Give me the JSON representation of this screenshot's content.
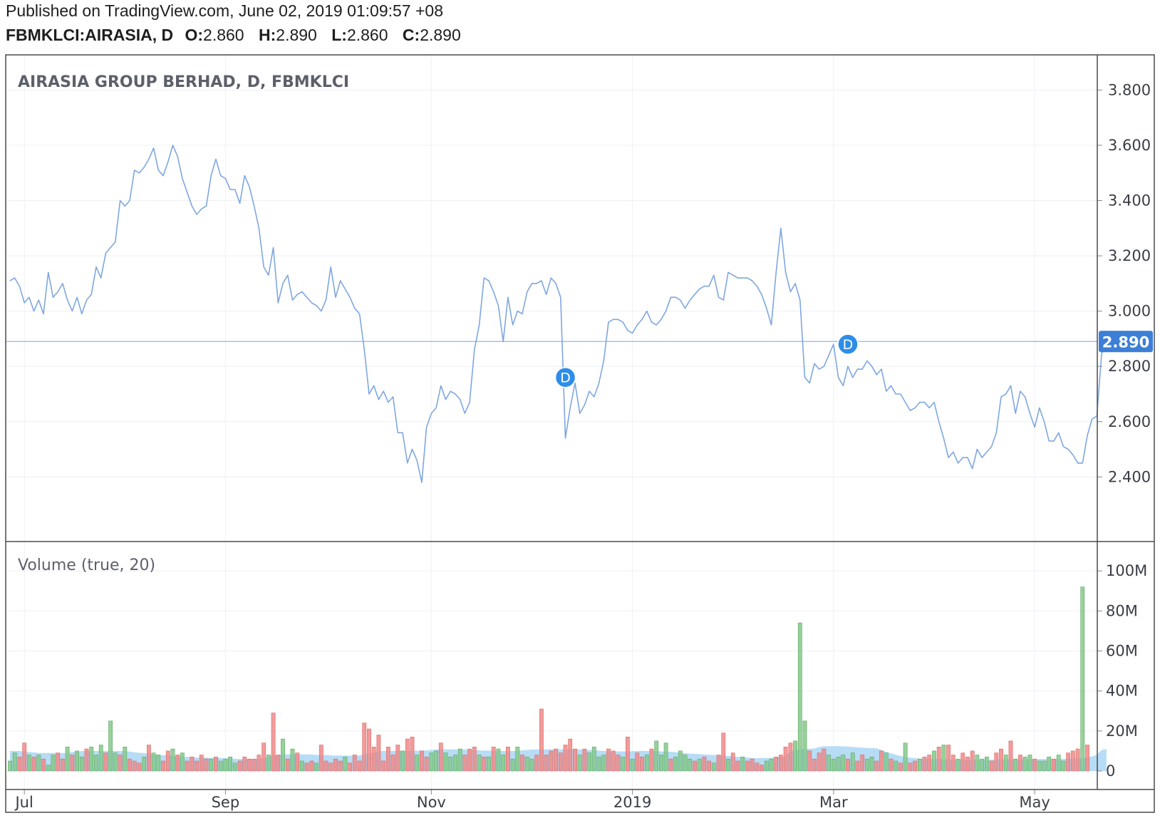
{
  "header": {
    "published": "Published on TradingView.com, June 02, 2019 01:09:57 +08",
    "symbol": "FBMKLCI:AIRASIA, D",
    "ohlc": [
      {
        "k": "O:",
        "v": "2.860"
      },
      {
        "k": "H:",
        "v": "2.890"
      },
      {
        "k": "L:",
        "v": "2.860"
      },
      {
        "k": "C:",
        "v": "2.890"
      }
    ]
  },
  "colors": {
    "line": "#7fa7e0",
    "last_price_bg": "#3d7fd6",
    "marker": "#2e8de8",
    "vol_up": "#85c98a",
    "vol_down": "#f08a88",
    "vol_ma": "#9fd0f3",
    "grid": "#eef0f3",
    "frame": "#4a4a4a"
  },
  "chart_data": [
    {
      "type": "line",
      "title": "AIRASIA GROUP BERHAD, D, FBMKLCI",
      "x_labels": [
        "Jul",
        "Sep",
        "Nov",
        "2019",
        "Mar",
        "May"
      ],
      "x_label_index": [
        3,
        45,
        88,
        130,
        172,
        214
      ],
      "ylim": [
        2.29,
        3.855
      ],
      "y_ticks": [
        "3.800",
        "3.600",
        "3.400",
        "3.200",
        "3.000",
        "2.800",
        "2.600",
        "2.400"
      ],
      "y_tick_values": [
        3.8,
        3.6,
        3.4,
        3.2,
        3.0,
        2.8,
        2.6,
        2.4
      ],
      "last_price": 2.89,
      "last_price_label": "2.890",
      "dividend_markers": [
        {
          "index": 116,
          "value": 2.76,
          "label": "D"
        },
        {
          "index": 175,
          "value": 2.88,
          "label": "D"
        }
      ],
      "values": [
        3.11,
        3.12,
        3.09,
        3.03,
        3.05,
        3.0,
        3.04,
        2.99,
        3.14,
        3.05,
        3.07,
        3.1,
        3.04,
        3.0,
        3.05,
        2.99,
        3.04,
        3.06,
        3.16,
        3.12,
        3.21,
        3.23,
        3.25,
        3.4,
        3.38,
        3.4,
        3.51,
        3.5,
        3.52,
        3.55,
        3.59,
        3.51,
        3.49,
        3.54,
        3.6,
        3.56,
        3.48,
        3.43,
        3.38,
        3.35,
        3.37,
        3.38,
        3.49,
        3.55,
        3.49,
        3.48,
        3.44,
        3.44,
        3.39,
        3.49,
        3.45,
        3.38,
        3.3,
        3.16,
        3.13,
        3.23,
        3.03,
        3.1,
        3.13,
        3.04,
        3.06,
        3.07,
        3.05,
        3.03,
        3.02,
        3.0,
        3.04,
        3.16,
        3.05,
        3.11,
        3.08,
        3.05,
        3.01,
        2.99,
        2.86,
        2.7,
        2.73,
        2.68,
        2.71,
        2.67,
        2.69,
        2.56,
        2.56,
        2.45,
        2.5,
        2.46,
        2.38,
        2.58,
        2.63,
        2.65,
        2.73,
        2.68,
        2.71,
        2.7,
        2.68,
        2.63,
        2.67,
        2.86,
        2.95,
        3.12,
        3.11,
        3.07,
        3.02,
        2.89,
        3.05,
        2.95,
        3.0,
        2.99,
        3.07,
        3.1,
        3.1,
        3.11,
        3.06,
        3.12,
        3.1,
        3.05,
        2.54,
        2.65,
        2.74,
        2.63,
        2.66,
        2.71,
        2.69,
        2.74,
        2.82,
        2.96,
        2.97,
        2.97,
        2.96,
        2.93,
        2.92,
        2.95,
        2.97,
        3.0,
        2.96,
        2.95,
        2.97,
        3.0,
        3.05,
        3.05,
        3.04,
        3.01,
        3.04,
        3.06,
        3.08,
        3.09,
        3.09,
        3.13,
        3.05,
        3.04,
        3.14,
        3.13,
        3.12,
        3.12,
        3.12,
        3.11,
        3.09,
        3.06,
        3.01,
        2.95,
        3.14,
        3.3,
        3.14,
        3.07,
        3.1,
        3.04,
        2.76,
        2.74,
        2.81,
        2.79,
        2.8,
        2.84,
        2.88,
        2.76,
        2.73,
        2.8,
        2.76,
        2.79,
        2.79,
        2.82,
        2.8,
        2.77,
        2.79,
        2.71,
        2.73,
        2.7,
        2.7,
        2.67,
        2.64,
        2.65,
        2.67,
        2.67,
        2.65,
        2.67,
        2.6,
        2.54,
        2.47,
        2.49,
        2.45,
        2.47,
        2.47,
        2.43,
        2.5,
        2.47,
        2.49,
        2.51,
        2.56,
        2.69,
        2.7,
        2.73,
        2.63,
        2.71,
        2.69,
        2.63,
        2.58,
        2.65,
        2.6,
        2.53,
        2.53,
        2.56,
        2.51,
        2.5,
        2.48,
        2.45,
        2.45,
        2.55,
        2.61,
        2.62,
        2.85,
        2.86,
        2.89
      ]
    },
    {
      "type": "bar",
      "title": "Volume (true, 20)",
      "ylim": [
        0,
        104
      ],
      "y_ticks": [
        "100M",
        "80M",
        "60M",
        "40M",
        "20M",
        "0"
      ],
      "y_tick_values": [
        100,
        80,
        60,
        40,
        20,
        0
      ],
      "units": "M",
      "volumes": [
        5,
        9,
        7,
        14,
        8,
        7,
        8,
        6,
        3,
        8,
        9,
        6,
        12,
        8,
        10,
        7,
        11,
        12,
        8,
        13,
        9,
        25,
        9,
        8,
        12,
        6,
        5,
        4,
        7,
        13,
        9,
        8,
        5,
        10,
        11,
        8,
        9,
        5,
        7,
        5,
        8,
        6,
        6,
        7,
        5,
        6,
        7,
        4,
        5,
        7,
        6,
        6,
        8,
        14,
        8,
        29,
        8,
        16,
        6,
        11,
        9,
        5,
        4,
        5,
        4,
        13,
        5,
        4,
        6,
        5,
        7,
        4,
        8,
        5,
        24,
        21,
        12,
        18,
        5,
        12,
        8,
        13,
        10,
        16,
        17,
        8,
        10,
        7,
        9,
        10,
        14,
        9,
        7,
        8,
        11,
        8,
        11,
        12,
        8,
        7,
        7,
        12,
        11,
        8,
        12,
        6,
        12,
        8,
        7,
        6,
        8,
        31,
        8,
        10,
        11,
        9,
        13,
        16,
        11,
        8,
        11,
        9,
        12,
        7,
        8,
        11,
        10,
        8,
        7,
        17,
        6,
        9,
        7,
        8,
        11,
        15,
        8,
        14,
        6,
        7,
        10,
        8,
        6,
        5,
        6,
        7,
        5,
        4,
        8,
        19,
        6,
        9,
        5,
        7,
        5,
        6,
        4,
        3,
        5,
        6,
        7,
        8,
        12,
        14,
        15,
        74,
        25,
        10,
        6,
        9,
        11,
        8,
        6,
        7,
        8,
        6,
        9,
        5,
        8,
        6,
        7,
        5,
        10,
        9,
        6,
        5,
        4,
        14,
        4,
        5,
        6,
        7,
        8,
        10,
        12,
        13,
        13,
        8,
        6,
        9,
        7,
        10,
        8,
        6,
        7,
        5,
        9,
        11,
        8,
        15,
        6,
        8,
        7,
        8,
        6,
        5,
        5,
        7,
        6,
        8,
        5,
        9,
        10,
        11,
        92,
        13
      ],
      "directions": "UUDDUDUDUUDDUDUUDUUUDUUDUDDDUDUUDDUDUDDDDDUDUUUUDDDDDDUDDUDUDUDDUDDDDDUDDDDDDDDDDDUDDUDDUUDUUUUDDDUDUDUUDUUDUUDDDDDDDDDUDUUUUDDDUDUDDUDUUUDUUUUDUDDUDDUDDUDDDDUUDDDDUUUDDDDUUUUDUDDUUDDUDUDUDDUDDUDUDDUDDDUUUDDDUDUDUUDUUUDUUDDDUDDUUUUUUDUDDDDUDU",
      "ma": [
        10,
        10,
        10,
        9.5,
        9.5,
        9.3,
        9,
        9,
        9,
        9,
        9,
        9,
        9,
        9.5,
        9.5,
        10,
        10,
        10,
        10,
        10,
        10,
        10,
        10,
        10,
        9.8,
        9.7,
        9.3,
        9.1,
        8.9,
        8.6,
        8.3,
        8.1,
        7.9,
        7.7,
        7.5,
        7.3,
        7.1,
        7,
        6.9,
        6.7,
        6.7,
        6.7,
        6.5,
        6.5,
        6.5,
        6.3,
        6.3,
        6.1,
        6,
        6,
        6,
        6,
        6.1,
        6.3,
        7.2,
        7.7,
        8,
        8.3,
        8.3,
        8.3,
        8.3,
        8.3,
        8.3,
        8.3,
        8,
        8,
        8,
        7.8,
        7.7,
        7.7,
        7.7,
        7.7,
        7.7,
        7.8,
        8.2,
        8.7,
        9.2,
        9.7,
        10,
        10,
        10,
        10,
        10,
        10,
        10,
        10.1,
        10.2,
        10.3,
        10.5,
        10.7,
        10.8,
        10.8,
        10.8,
        10.8,
        10.8,
        10.8,
        10.5,
        10.5,
        10.3,
        10.2,
        10.2,
        10,
        10,
        10,
        10,
        10,
        10.1,
        10.3,
        10.5,
        10.7,
        10.8,
        10.8,
        10.8,
        10.8,
        10.8,
        10.8,
        10.8,
        10.8,
        10.8,
        10.8,
        10.6,
        10.5,
        10.4,
        10.2,
        10,
        9.8,
        9.8,
        9.8,
        9.8,
        9.8,
        9.9,
        10,
        10,
        10,
        10,
        9.9,
        9.8,
        9.7,
        9.6,
        9.4,
        9.1,
        8.9,
        8.7,
        8.6,
        8.4,
        8.3,
        8.1,
        8,
        7.9,
        7.7,
        7.5,
        7.3,
        7.1,
        6.9,
        6.7,
        6.5,
        6.4,
        6.4,
        6.5,
        6.6,
        6.8,
        7,
        7.3,
        9.8,
        10.5,
        10.7,
        10.9,
        11.1,
        11.2,
        12,
        12.4,
        12.4,
        12.4,
        12.4,
        12.3,
        12.2,
        12,
        11.8,
        11.6,
        11.5,
        11.4,
        11.3,
        10.5,
        9.5,
        8.8,
        8.1,
        7.5,
        7,
        6.7,
        6.4,
        6.2,
        6.1,
        6.1,
        6,
        6,
        5.9,
        5.8,
        5.7,
        5.7,
        5.6,
        5.6,
        5.6,
        5.6,
        5.6,
        5.6,
        5.6,
        5.7,
        5.8,
        5.8,
        5.8,
        5.8,
        5.8,
        5.8,
        5.8,
        5.9,
        6,
        6,
        6,
        6,
        6,
        6,
        6.2,
        6.3,
        6.3,
        6.3,
        7,
        7.2,
        8.2,
        10.5,
        11
      ]
    }
  ]
}
